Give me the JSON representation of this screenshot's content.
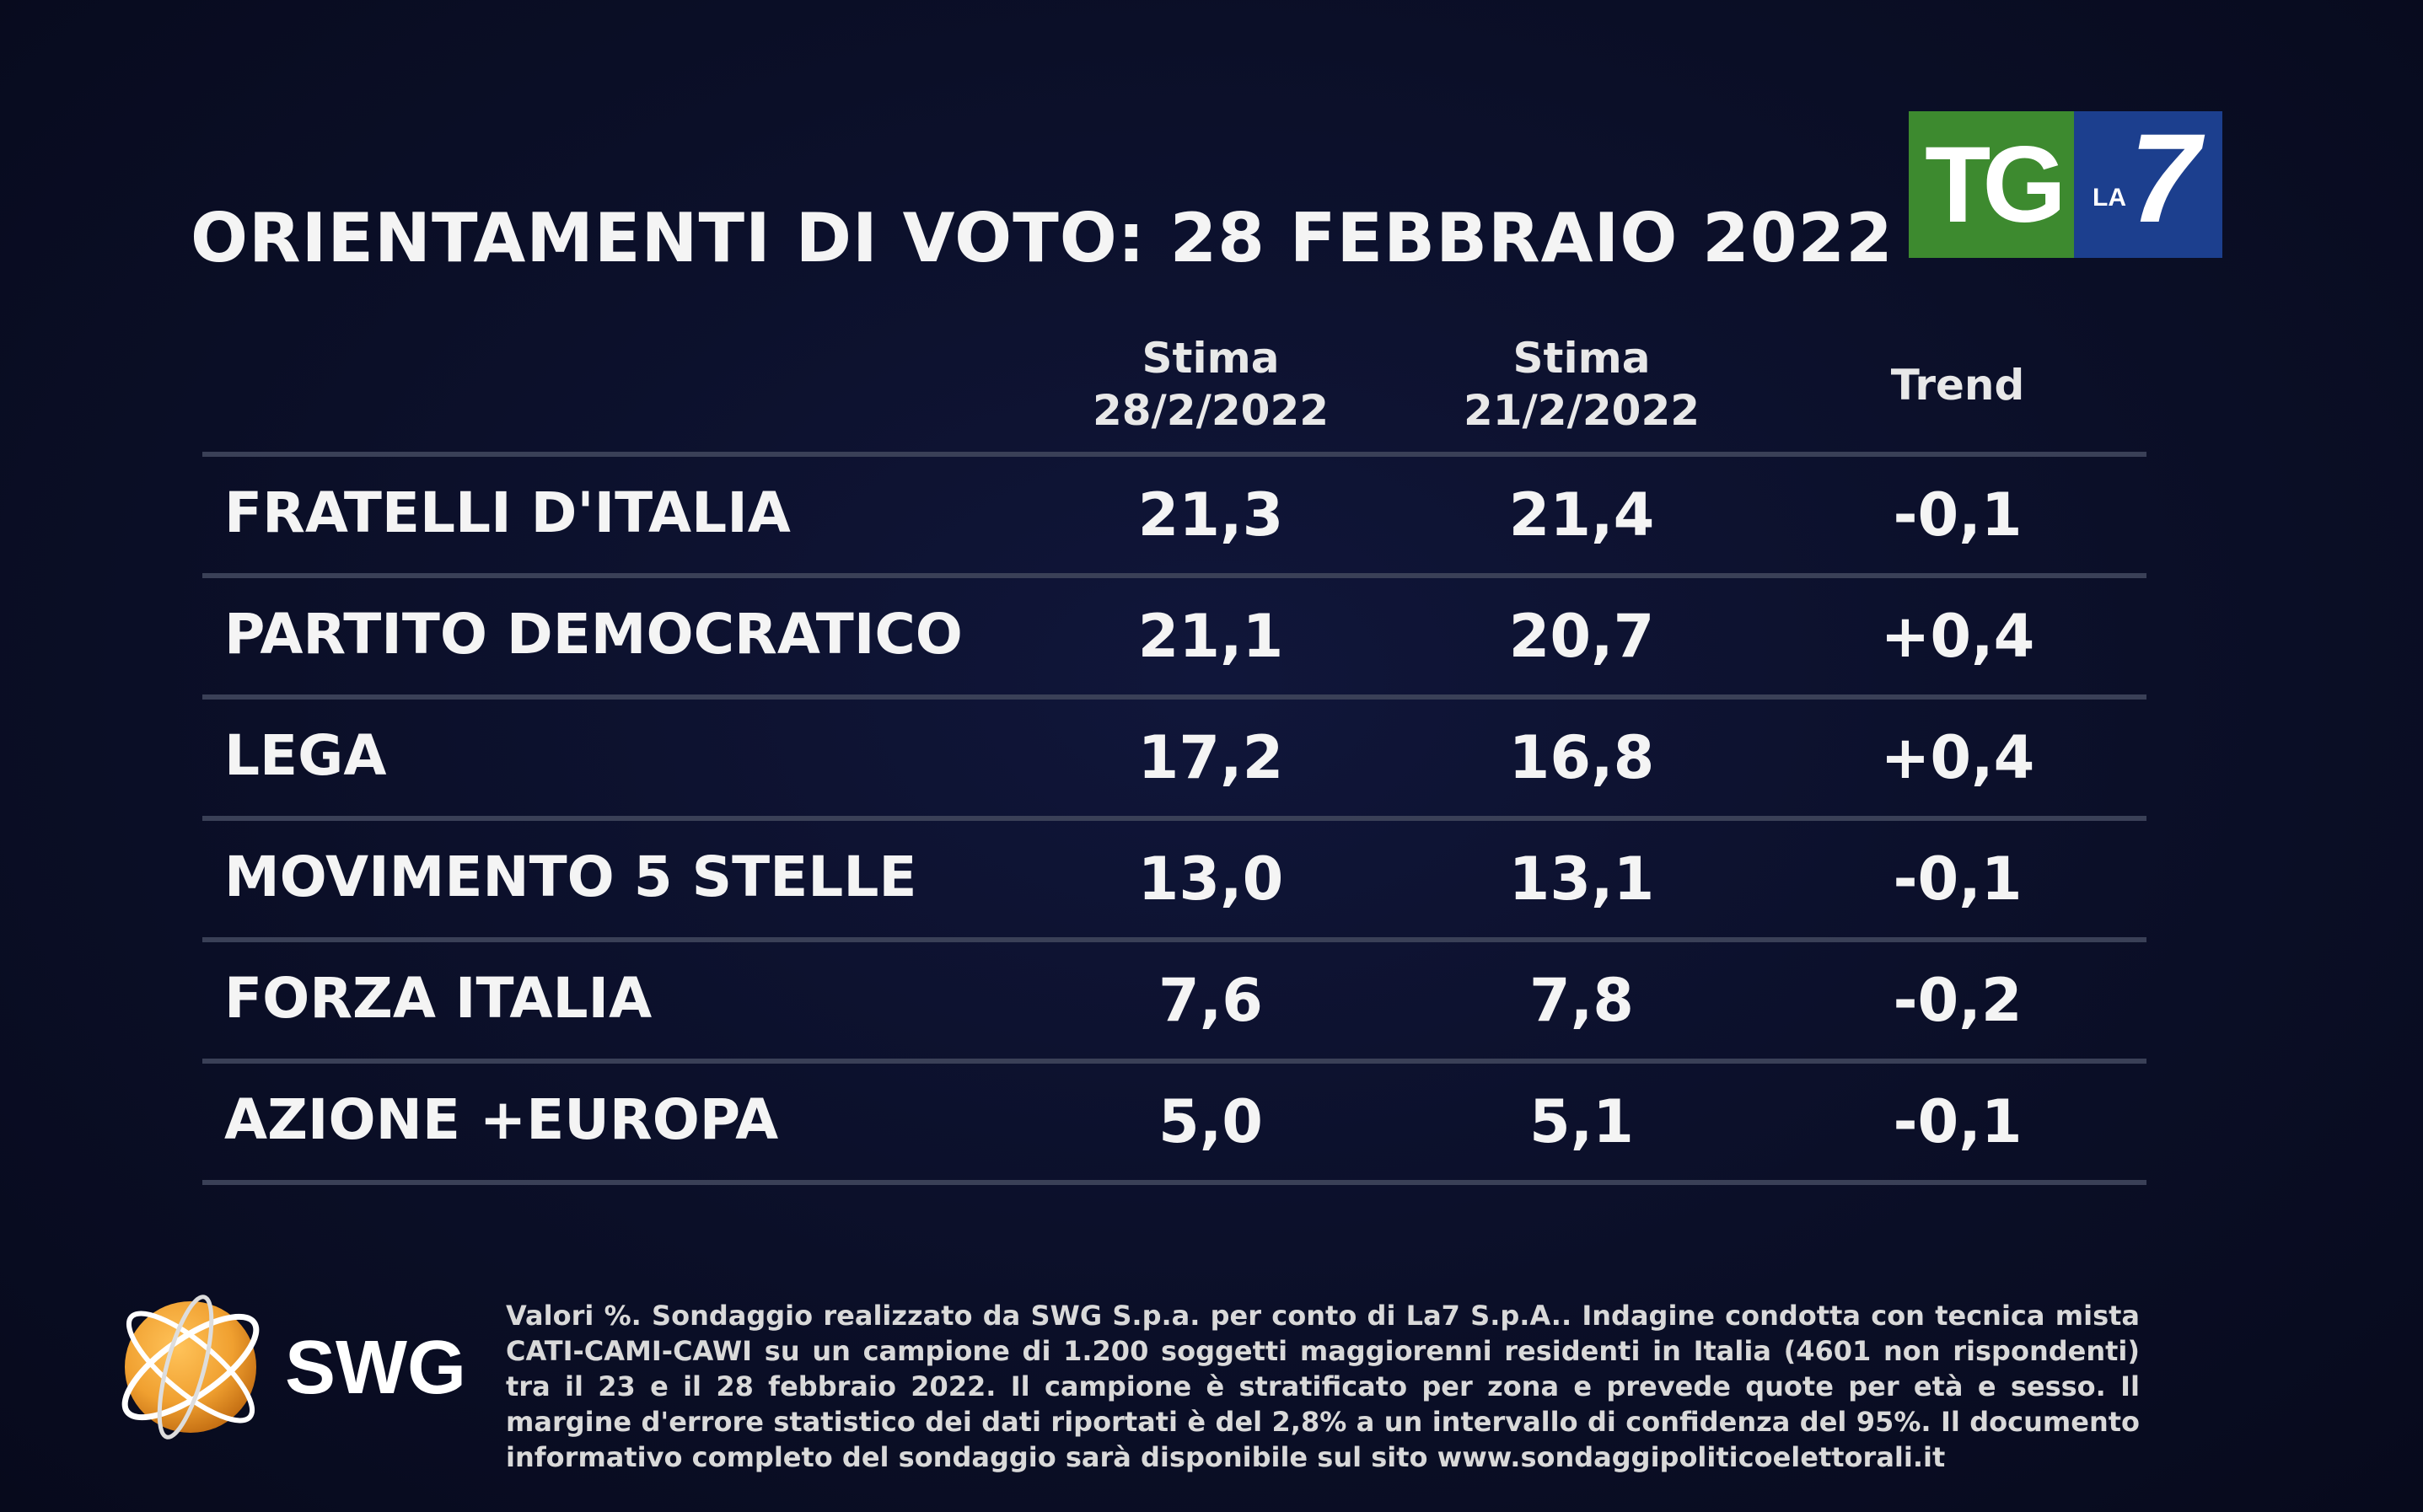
{
  "chart_data": {
    "type": "table",
    "title": "ORIENTAMENTI DI VOTO: 28 FEBBRAIO 2022",
    "columns": [
      {
        "line1": "Stima",
        "line2": "28/2/2022"
      },
      {
        "line1": "Stima",
        "line2": "21/2/2022"
      },
      {
        "line1": "Trend",
        "line2": ""
      }
    ],
    "rows": [
      {
        "party": "FRATELLI D'ITALIA",
        "stima_28_2": "21,3",
        "stima_21_2": "21,4",
        "trend": "-0,1"
      },
      {
        "party": "PARTITO DEMOCRATICO",
        "stima_28_2": "21,1",
        "stima_21_2": "20,7",
        "trend": "+0,4"
      },
      {
        "party": "LEGA",
        "stima_28_2": "17,2",
        "stima_21_2": "16,8",
        "trend": "+0,4"
      },
      {
        "party": "MOVIMENTO 5 STELLE",
        "stima_28_2": "13,0",
        "stima_21_2": "13,1",
        "trend": "-0,1"
      },
      {
        "party": "FORZA ITALIA",
        "stima_28_2": "7,6",
        "stima_21_2": "7,8",
        "trend": "-0,2"
      },
      {
        "party": "AZIONE +EUROPA",
        "stima_28_2": "5,0",
        "stima_21_2": "5,1",
        "trend": "-0,1"
      }
    ]
  },
  "broadcaster_logo": {
    "tg": "TG",
    "la": "LA",
    "seven": "7",
    "green": "#3d8a2f",
    "blue": "#1c3f8e"
  },
  "pollster_logo": {
    "name": "SWG",
    "icon": "swg-globe-icon",
    "color": "#f0a030"
  },
  "footnote": "Valori %. Sondaggio realizzato da SWG S.p.a. per conto di La7 S.p.A.. Indagine condotta con tecnica mista CATI-CAMI-CAWI su un campione di 1.200 soggetti maggiorenni residenti in Italia (4601 non rispondenti) tra il 23 e il 28 febbraio 2022. Il campione è stratificato per zona e prevede quote per età e sesso. Il margine d'errore statistico dei dati riportati è del 2,8% a un intervallo di confidenza del 95%. Il documento informativo completo del sondaggio sarà disponibile sul sito www.sondaggipoliticoelettorali.it"
}
